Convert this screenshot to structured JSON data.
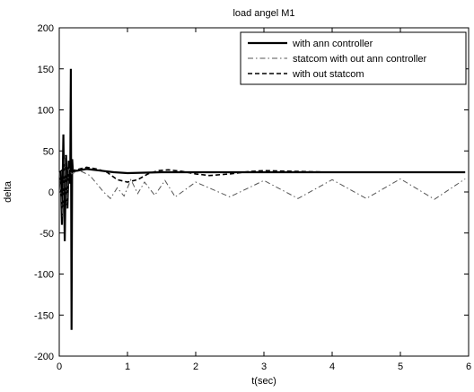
{
  "chart_data": {
    "type": "line",
    "title": "load angel M1",
    "xlabel": "t(sec)",
    "ylabel": "delta",
    "xlim": [
      0,
      6
    ],
    "ylim": [
      -200,
      200
    ],
    "xticks": [
      0,
      1,
      2,
      3,
      4,
      5,
      6
    ],
    "yticks": [
      -200,
      -150,
      -100,
      -50,
      0,
      50,
      100,
      150,
      200
    ],
    "grid": false,
    "legend_position": "top-right",
    "series": [
      {
        "name": "with ann controller",
        "style": "solid-thick",
        "color": "#000000",
        "points": [
          [
            0,
            24
          ],
          [
            0.02,
            24
          ],
          [
            0.04,
            -40
          ],
          [
            0.06,
            70
          ],
          [
            0.08,
            -60
          ],
          [
            0.1,
            45
          ],
          [
            0.12,
            -20
          ],
          [
            0.14,
            38
          ],
          [
            0.16,
            10
          ],
          [
            0.17,
            150
          ],
          [
            0.18,
            -168
          ],
          [
            0.19,
            40
          ],
          [
            0.2,
            25
          ],
          [
            0.4,
            28
          ],
          [
            0.6,
            26
          ],
          [
            0.8,
            24
          ],
          [
            1.0,
            23
          ],
          [
            1.5,
            24
          ],
          [
            2,
            24
          ],
          [
            3,
            24
          ],
          [
            4,
            24
          ],
          [
            5,
            24
          ],
          [
            5.95,
            24
          ]
        ]
      },
      {
        "name": "statcom with out ann controller",
        "style": "dashdot",
        "color": "#555555",
        "points": [
          [
            0,
            24
          ],
          [
            0.05,
            -30
          ],
          [
            0.08,
            45
          ],
          [
            0.11,
            -20
          ],
          [
            0.14,
            30
          ],
          [
            0.18,
            22
          ],
          [
            0.3,
            26
          ],
          [
            0.45,
            20
          ],
          [
            0.55,
            10
          ],
          [
            0.65,
            0
          ],
          [
            0.75,
            -8
          ],
          [
            0.85,
            5
          ],
          [
            0.95,
            -5
          ],
          [
            1.05,
            15
          ],
          [
            1.15,
            -2
          ],
          [
            1.25,
            12
          ],
          [
            1.4,
            -4
          ],
          [
            1.55,
            14
          ],
          [
            1.7,
            -6
          ],
          [
            2,
            12
          ],
          [
            2.5,
            -6
          ],
          [
            3,
            14
          ],
          [
            3.5,
            -8
          ],
          [
            4,
            15
          ],
          [
            4.5,
            -8
          ],
          [
            5,
            16
          ],
          [
            5.5,
            -9
          ],
          [
            5.95,
            16
          ]
        ]
      },
      {
        "name": "with out statcom",
        "style": "dashed",
        "color": "#000000",
        "points": [
          [
            0,
            24
          ],
          [
            0.1,
            30
          ],
          [
            0.2,
            26
          ],
          [
            0.4,
            30
          ],
          [
            0.55,
            28
          ],
          [
            0.7,
            24
          ],
          [
            0.85,
            15
          ],
          [
            1.0,
            12
          ],
          [
            1.15,
            15
          ],
          [
            1.3,
            22
          ],
          [
            1.45,
            26
          ],
          [
            1.6,
            27
          ],
          [
            1.8,
            25
          ],
          [
            2.0,
            22
          ],
          [
            2.2,
            20
          ],
          [
            2.5,
            22
          ],
          [
            2.8,
            25
          ],
          [
            3.0,
            26
          ],
          [
            3.5,
            25
          ],
          [
            4,
            24
          ],
          [
            5,
            24
          ],
          [
            5.95,
            24
          ]
        ]
      }
    ]
  }
}
